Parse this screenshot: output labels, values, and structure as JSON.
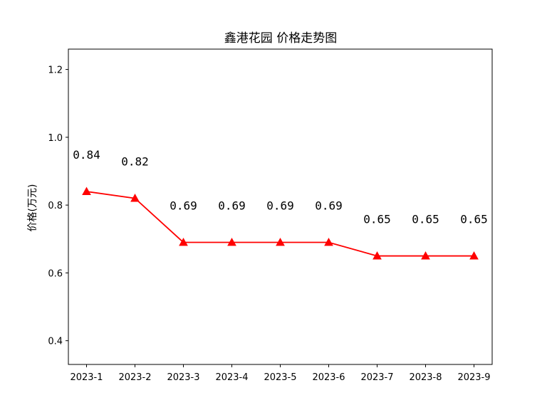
{
  "chart_data": {
    "type": "line",
    "title": "鑫港花园 价格走势图",
    "xlabel": "",
    "ylabel": "价格(万元)",
    "categories": [
      "2023-1",
      "2023-2",
      "2023-3",
      "2023-4",
      "2023-5",
      "2023-6",
      "2023-7",
      "2023-8",
      "2023-9"
    ],
    "series": [
      {
        "values": [
          0.84,
          0.82,
          0.69,
          0.69,
          0.69,
          0.69,
          0.65,
          0.65,
          0.65
        ],
        "color": "#ff0000",
        "marker": "triangle-up"
      }
    ],
    "data_labels": [
      "0.84",
      "0.82",
      "0.69",
      "0.69",
      "0.69",
      "0.69",
      "0.65",
      "0.65",
      "0.65"
    ],
    "ylim": [
      0.33,
      1.26
    ],
    "yticks": [
      0.4,
      0.6,
      0.8,
      1.0,
      1.2
    ],
    "ytick_labels": [
      "0.4",
      "0.6",
      "0.8",
      "1.0",
      "1.2"
    ],
    "grid": false,
    "legend": "none"
  }
}
